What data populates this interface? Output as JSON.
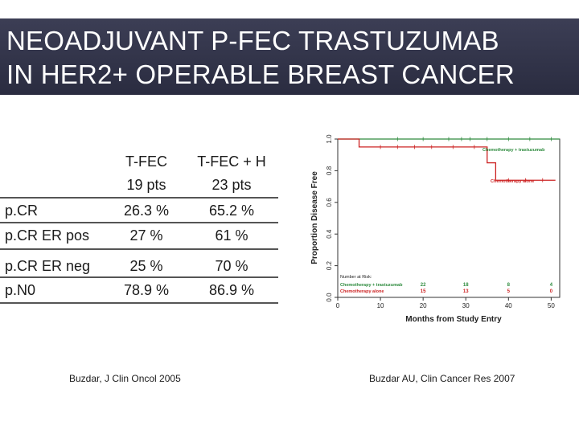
{
  "slide": {
    "title_line1": "NEOADJUVANT P-FEC TRASTUZUMAB",
    "title_line2": "IN HER2+ OPERABLE BREAST CANCER"
  },
  "table": {
    "header": {
      "col2_line1": "T-FEC",
      "col2_line2": "19 pts",
      "col3_line1": "T-FEC + H",
      "col3_line2": "23 pts"
    },
    "rows": [
      {
        "label": "p.CR",
        "tfec": "26.3 %",
        "tfech": "65.2 %"
      },
      {
        "label": "p.CR ER pos",
        "tfec": "27 %",
        "tfech": "61 %"
      },
      {
        "label": "p.CR ER neg",
        "tfec": "25 %",
        "tfech": "70 %"
      },
      {
        "label": "p.N0",
        "tfec": "78.9 %",
        "tfech": "86.9 %"
      }
    ]
  },
  "citations": {
    "left": "Buzdar, J Clin Oncol 2005",
    "right": "Buzdar AU, Clin Cancer Res 2007"
  },
  "chart_data": {
    "type": "line",
    "title": "",
    "xlabel": "Months from Study Entry",
    "ylabel": "Proportion Disease Free",
    "xlim": [
      0,
      52
    ],
    "ylim": [
      0,
      1.0
    ],
    "x_ticks": [
      0,
      10,
      20,
      30,
      40,
      50
    ],
    "x_tick_labels": [
      "0",
      "10",
      "20",
      "30",
      "40",
      "50"
    ],
    "y_ticks": [
      0,
      0.2,
      0.4,
      0.6,
      0.8,
      1.0
    ],
    "y_tick_labels": [
      "0.0",
      "0.2",
      "0.4",
      "0.6",
      "0.8",
      "1.0"
    ],
    "series": [
      {
        "name": "Chemotherapy + trastuzumab",
        "color": "#2e8b3e",
        "x": [
          0,
          52
        ],
        "y": [
          1.0,
          1.0
        ],
        "censor_x": [
          14,
          20,
          26,
          29,
          31,
          35,
          40,
          45,
          50
        ]
      },
      {
        "name": "Chemotherapy alone",
        "color": "#cc2222",
        "x": [
          0,
          5,
          5,
          35,
          35,
          37,
          37,
          51
        ],
        "y": [
          1.0,
          1.0,
          0.95,
          0.95,
          0.85,
          0.85,
          0.74,
          0.74
        ],
        "censor_x": [
          10,
          14,
          18,
          22,
          27,
          32,
          40,
          44,
          48
        ]
      }
    ],
    "risk_table": {
      "title": "Number at Risk:",
      "x": [
        0,
        10,
        20,
        30,
        40
      ],
      "rows": [
        {
          "name": "Chemotherapy + trastuzumab",
          "values": [
            "22",
            "18",
            "8",
            "4"
          ],
          "x": [
            20,
            30,
            40,
            50
          ]
        },
        {
          "name": "Chemotherapy alone",
          "values": [
            "15",
            "13",
            "5",
            "0"
          ],
          "x": [
            20,
            30,
            40,
            50
          ]
        }
      ]
    }
  }
}
